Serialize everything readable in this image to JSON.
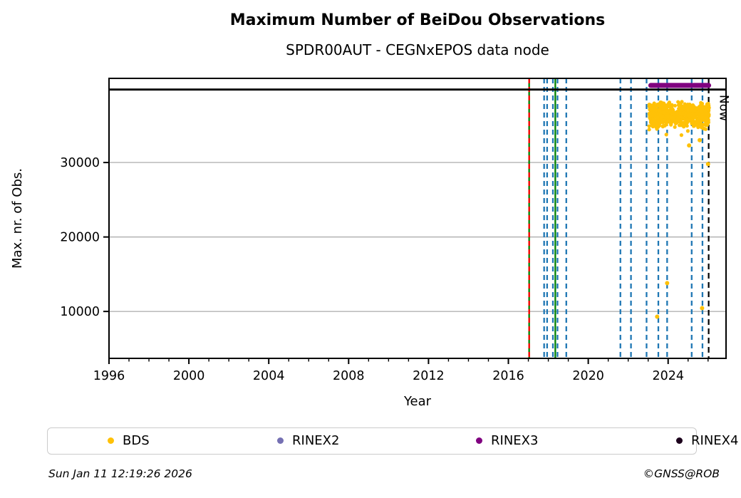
{
  "header": {
    "title": "Maximum Number of BeiDou Observations",
    "subtitle": "SPDR00AUT - CEGNxEPOS data node"
  },
  "chart_data": {
    "type": "scatter",
    "title": "Maximum Number of BeiDou Observations",
    "subtitle": "SPDR00AUT - CEGNxEPOS data node",
    "xlabel": "Year",
    "ylabel": "Max. nr. of Obs.",
    "xlim": [
      1996,
      2026.9
    ],
    "ylim": [
      3700,
      41300
    ],
    "xticks": [
      1996,
      2000,
      2004,
      2008,
      2012,
      2016,
      2020,
      2024
    ],
    "x_minor_step": 1,
    "yticks": [
      10000,
      20000,
      30000
    ],
    "grid": "horizontal",
    "grid_color": "#b3b3b3",
    "frame_color": "#000000",
    "top_line_value": 39800,
    "now_line": {
      "year": 2026.03,
      "label": "Now",
      "color": "#000000",
      "style": "dashed"
    },
    "event_lines": [
      {
        "year": 2017.04,
        "color": "#008000",
        "style": "solid"
      },
      {
        "year": 2017.04,
        "color": "#ff0000",
        "style": "dashed"
      },
      {
        "year": 2017.79,
        "color": "#1f77b4",
        "style": "dashed"
      },
      {
        "year": 2017.94,
        "color": "#1f77b4",
        "style": "dashed"
      },
      {
        "year": 2018.23,
        "color": "#1f77b4",
        "style": "dashed"
      },
      {
        "year": 2018.35,
        "color": "#008000",
        "style": "solid"
      },
      {
        "year": 2018.46,
        "color": "#1f77b4",
        "style": "dashed"
      },
      {
        "year": 2018.9,
        "color": "#1f77b4",
        "style": "dashed"
      },
      {
        "year": 2021.61,
        "color": "#1f77b4",
        "style": "dashed"
      },
      {
        "year": 2022.14,
        "color": "#1f77b4",
        "style": "dashed"
      },
      {
        "year": 2022.92,
        "color": "#1f77b4",
        "style": "dashed"
      },
      {
        "year": 2023.51,
        "color": "#1f77b4",
        "style": "dashed"
      },
      {
        "year": 2023.95,
        "color": "#1f77b4",
        "style": "dashed"
      },
      {
        "year": 2025.18,
        "color": "#1f77b4",
        "style": "dashed"
      },
      {
        "year": 2025.72,
        "color": "#1f77b4",
        "style": "dashed"
      }
    ],
    "series": [
      {
        "name": "BDS",
        "color": "#ffc107",
        "cluster": {
          "seed": 42,
          "n": 620,
          "x_start": 2023.05,
          "x_end": 2026.05,
          "y_core_min": 34600,
          "y_core_max": 38250,
          "droop_fraction": 0.1,
          "droop_max": 1600
        },
        "outliers": [
          [
            2023.45,
            9300
          ],
          [
            2023.95,
            13800
          ],
          [
            2025.05,
            32300
          ],
          [
            2025.58,
            33000
          ],
          [
            2025.7,
            10450
          ],
          [
            2026.0,
            29800
          ]
        ]
      },
      {
        "name": "RINEX2",
        "color": "#7570b3",
        "points": []
      },
      {
        "name": "RINEX3",
        "color": "#800080",
        "band_value": 40350,
        "band_segments": [
          [
            2023.13,
            2025.18
          ],
          [
            2025.27,
            2026.03
          ]
        ]
      },
      {
        "name": "RINEX4",
        "color": "#1c001c",
        "points": []
      }
    ],
    "legend_position": "bottom"
  },
  "legend": {
    "items": [
      {
        "label": "BDS",
        "color": "#ffc107"
      },
      {
        "label": "RINEX2",
        "color": "#7570b3"
      },
      {
        "label": "RINEX3",
        "color": "#800080"
      },
      {
        "label": "RINEX4",
        "color": "#1c001c"
      }
    ]
  },
  "footer": {
    "timestamp": "Sun Jan 11 12:19:26 2026",
    "credit": "©GNSS@ROB"
  }
}
